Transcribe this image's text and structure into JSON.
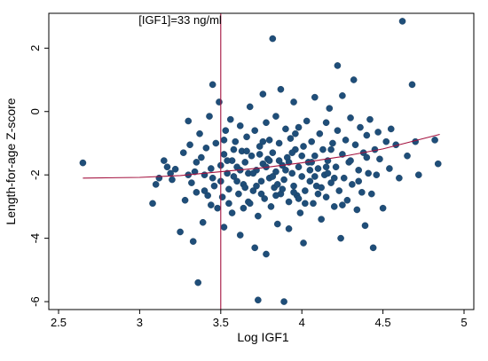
{
  "chart_data": {
    "type": "scatter",
    "xlabel": "Log IGF1",
    "ylabel": "Length-for-age Z-score",
    "xlim": [
      2.5,
      5
    ],
    "ylim": [
      -6.25,
      3.1
    ],
    "x_ticks": [
      2.5,
      3,
      3.5,
      4,
      4.5,
      5
    ],
    "x_tick_labels": [
      "2.5",
      "3",
      "3.5",
      "4",
      "4.5",
      "5"
    ],
    "y_ticks": [
      -6,
      -4,
      -2,
      0,
      2
    ],
    "y_tick_labels": [
      "-6",
      "-4",
      "-2",
      "0",
      "2"
    ],
    "grid": false,
    "legend": "none",
    "reference_line": {
      "x": 3.5,
      "label": "[IGF1]=33 ng/ml",
      "color": "#a4123f"
    },
    "fit_line": {
      "color": "#a4123f",
      "x": [
        2.65,
        3.0,
        3.25,
        3.5,
        3.75,
        4.0,
        4.25,
        4.5,
        4.85
      ],
      "y": [
        -2.1,
        -2.08,
        -2.02,
        -1.9,
        -1.78,
        -1.62,
        -1.42,
        -1.18,
        -0.72
      ]
    },
    "colors": {
      "marker": "#1f4e79",
      "line": "#a4123f"
    },
    "points": [
      [
        2.65,
        -1.62
      ],
      [
        3.08,
        -2.9
      ],
      [
        3.1,
        -2.3
      ],
      [
        3.12,
        -2.1
      ],
      [
        3.15,
        -1.55
      ],
      [
        3.17,
        -1.75
      ],
      [
        3.19,
        -1.95
      ],
      [
        3.2,
        -2.15
      ],
      [
        3.22,
        -1.82
      ],
      [
        3.25,
        -3.8
      ],
      [
        3.27,
        -1.3
      ],
      [
        3.28,
        -2.8
      ],
      [
        3.3,
        -0.3
      ],
      [
        3.31,
        -1.05
      ],
      [
        3.32,
        -2.25
      ],
      [
        3.33,
        -4.1
      ],
      [
        3.34,
        -1.9
      ],
      [
        3.35,
        -2.55
      ],
      [
        3.36,
        -5.4
      ],
      [
        3.37,
        -0.7
      ],
      [
        3.38,
        -1.45
      ],
      [
        3.39,
        -3.5
      ],
      [
        3.4,
        -2.0
      ],
      [
        3.41,
        -1.15
      ],
      [
        3.42,
        -2.65
      ],
      [
        3.43,
        -0.15
      ],
      [
        3.44,
        -1.8
      ],
      [
        3.45,
        0.85
      ],
      [
        3.46,
        -2.35
      ],
      [
        3.47,
        -1.0
      ],
      [
        3.48,
        -3.05
      ],
      [
        3.49,
        0.3
      ],
      [
        3.5,
        -1.7
      ],
      [
        3.5,
        -2.2
      ],
      [
        3.51,
        -2.7
      ],
      [
        3.52,
        -1.35
      ],
      [
        3.52,
        -3.65
      ],
      [
        3.53,
        -0.6
      ],
      [
        3.54,
        -1.95
      ],
      [
        3.55,
        -2.45
      ],
      [
        3.56,
        -0.25
      ],
      [
        3.57,
        -1.55
      ],
      [
        3.57,
        -3.2
      ],
      [
        3.58,
        -2.05
      ],
      [
        3.59,
        -0.95
      ],
      [
        3.6,
        -1.75
      ],
      [
        3.61,
        -2.6
      ],
      [
        3.62,
        -0.45
      ],
      [
        3.62,
        -3.9
      ],
      [
        3.63,
        -1.25
      ],
      [
        3.64,
        -2.3
      ],
      [
        3.65,
        -1.6
      ],
      [
        3.66,
        -0.8
      ],
      [
        3.67,
        -2.85
      ],
      [
        3.67,
        -1.95
      ],
      [
        3.68,
        0.15
      ],
      [
        3.69,
        -1.4
      ],
      [
        3.7,
        -2.5
      ],
      [
        3.71,
        -0.6
      ],
      [
        3.71,
        -4.3
      ],
      [
        3.72,
        -1.85
      ],
      [
        3.73,
        -3.3
      ],
      [
        3.73,
        -5.95
      ],
      [
        3.74,
        -1.1
      ],
      [
        3.75,
        -2.2
      ],
      [
        3.76,
        0.55
      ],
      [
        3.76,
        -1.65
      ],
      [
        3.77,
        -2.75
      ],
      [
        3.78,
        -0.35
      ],
      [
        3.78,
        -4.5
      ],
      [
        3.79,
        -1.5
      ],
      [
        3.8,
        -2.1
      ],
      [
        3.8,
        -0.9
      ],
      [
        3.81,
        -3.0
      ],
      [
        3.82,
        2.3
      ],
      [
        3.82,
        -1.3
      ],
      [
        3.83,
        -2.4
      ],
      [
        3.84,
        -0.15
      ],
      [
        3.84,
        -1.9
      ],
      [
        3.85,
        -3.55
      ],
      [
        3.86,
        -1.0
      ],
      [
        3.87,
        -2.6
      ],
      [
        3.87,
        0.7
      ],
      [
        3.88,
        -1.7
      ],
      [
        3.89,
        -6.0
      ],
      [
        3.89,
        -2.15
      ],
      [
        3.9,
        -0.55
      ],
      [
        3.91,
        -1.45
      ],
      [
        3.92,
        -2.85
      ],
      [
        3.92,
        -3.7
      ],
      [
        3.93,
        -0.85
      ],
      [
        3.94,
        -1.95
      ],
      [
        3.95,
        -2.35
      ],
      [
        3.95,
        0.3
      ],
      [
        3.96,
        -1.2
      ],
      [
        3.97,
        -2.65
      ],
      [
        3.98,
        -0.5
      ],
      [
        3.98,
        -1.75
      ],
      [
        3.99,
        -3.2
      ],
      [
        4.0,
        -2.05
      ],
      [
        4.01,
        -1.1
      ],
      [
        4.01,
        -4.15
      ],
      [
        4.02,
        -2.5
      ],
      [
        4.03,
        -0.3
      ],
      [
        4.04,
        -1.6
      ],
      [
        4.05,
        -2.2
      ],
      [
        4.06,
        -0.95
      ],
      [
        4.07,
        -2.9
      ],
      [
        4.08,
        0.45
      ],
      [
        4.08,
        -1.4
      ],
      [
        4.09,
        -2.35
      ],
      [
        4.1,
        -1.8
      ],
      [
        4.11,
        -0.7
      ],
      [
        4.12,
        -3.4
      ],
      [
        4.13,
        -1.2
      ],
      [
        4.14,
        -2.0
      ],
      [
        4.15,
        -0.35
      ],
      [
        4.15,
        -2.7
      ],
      [
        4.16,
        -1.55
      ],
      [
        4.17,
        0.1
      ],
      [
        4.18,
        -2.25
      ],
      [
        4.19,
        -1.0
      ],
      [
        4.2,
        -3.0
      ],
      [
        4.21,
        -1.75
      ],
      [
        4.22,
        -0.6
      ],
      [
        4.22,
        1.45
      ],
      [
        4.23,
        -2.5
      ],
      [
        4.24,
        -4.0
      ],
      [
        4.25,
        -1.35
      ],
      [
        4.25,
        0.5
      ],
      [
        4.26,
        -2.1
      ],
      [
        4.27,
        -0.9
      ],
      [
        4.28,
        -2.8
      ],
      [
        4.29,
        -1.6
      ],
      [
        4.3,
        -0.2
      ],
      [
        4.31,
        -2.3
      ],
      [
        4.32,
        1.0
      ],
      [
        4.33,
        -1.05
      ],
      [
        4.34,
        -3.1
      ],
      [
        4.35,
        -1.85
      ],
      [
        4.36,
        -0.5
      ],
      [
        4.37,
        -2.55
      ],
      [
        4.38,
        -1.3
      ],
      [
        4.39,
        -3.6
      ],
      [
        4.4,
        -0.75
      ],
      [
        4.41,
        -1.95
      ],
      [
        4.42,
        -0.25
      ],
      [
        4.43,
        -2.6
      ],
      [
        4.44,
        -4.3
      ],
      [
        4.45,
        -1.2
      ],
      [
        4.46,
        -2.0
      ],
      [
        4.47,
        -0.65
      ],
      [
        4.48,
        -1.5
      ],
      [
        4.5,
        -3.05
      ],
      [
        4.52,
        -0.95
      ],
      [
        4.54,
        -1.8
      ],
      [
        4.55,
        -0.55
      ],
      [
        4.58,
        -1.05
      ],
      [
        4.6,
        -2.1
      ],
      [
        4.62,
        2.85
      ],
      [
        4.65,
        -1.4
      ],
      [
        4.68,
        0.85
      ],
      [
        4.7,
        -0.95
      ],
      [
        4.72,
        -2.0
      ],
      [
        4.82,
        -0.9
      ],
      [
        4.84,
        -1.65
      ],
      [
        3.3,
        -2.0
      ],
      [
        3.35,
        -1.6
      ],
      [
        3.4,
        -2.5
      ],
      [
        3.45,
        -2.1
      ],
      [
        3.55,
        -2.9
      ],
      [
        3.6,
        -2.2
      ],
      [
        3.65,
        -2.4
      ],
      [
        3.7,
        -1.95
      ],
      [
        3.75,
        -2.6
      ],
      [
        3.8,
        -1.55
      ],
      [
        3.85,
        -2.3
      ],
      [
        3.9,
        -1.85
      ],
      [
        3.95,
        -2.55
      ],
      [
        4.0,
        -1.4
      ],
      [
        4.05,
        -1.85
      ],
      [
        4.1,
        -2.6
      ],
      [
        4.15,
        -1.75
      ],
      [
        4.2,
        -2.1
      ],
      [
        4.25,
        -2.95
      ],
      [
        4.3,
        -1.55
      ],
      [
        4.35,
        -2.2
      ],
      [
        4.4,
        -1.45
      ],
      [
        3.58,
        -1.2
      ],
      [
        3.68,
        -2.9
      ],
      [
        3.78,
        -1.75
      ],
      [
        3.88,
        -2.45
      ],
      [
        3.98,
        -2.75
      ],
      [
        4.08,
        -2.05
      ],
      [
        4.18,
        -1.2
      ],
      [
        3.62,
        -1.85
      ],
      [
        3.72,
        -2.35
      ],
      [
        3.82,
        -2.05
      ],
      [
        3.92,
        -1.6
      ],
      [
        4.02,
        -2.9
      ],
      [
        4.12,
        -2.4
      ],
      [
        3.52,
        -0.9
      ],
      [
        3.66,
        -1.25
      ],
      [
        3.76,
        -0.95
      ],
      [
        3.86,
        -1.55
      ],
      [
        3.96,
        -0.7
      ],
      [
        4.06,
        -1.6
      ],
      [
        4.16,
        -1.95
      ],
      [
        3.44,
        -2.95
      ],
      [
        3.54,
        -1.55
      ],
      [
        3.64,
        -3.05
      ],
      [
        3.74,
        -1.35
      ],
      [
        3.84,
        -2.65
      ],
      [
        3.94,
        -1.3
      ]
    ]
  }
}
